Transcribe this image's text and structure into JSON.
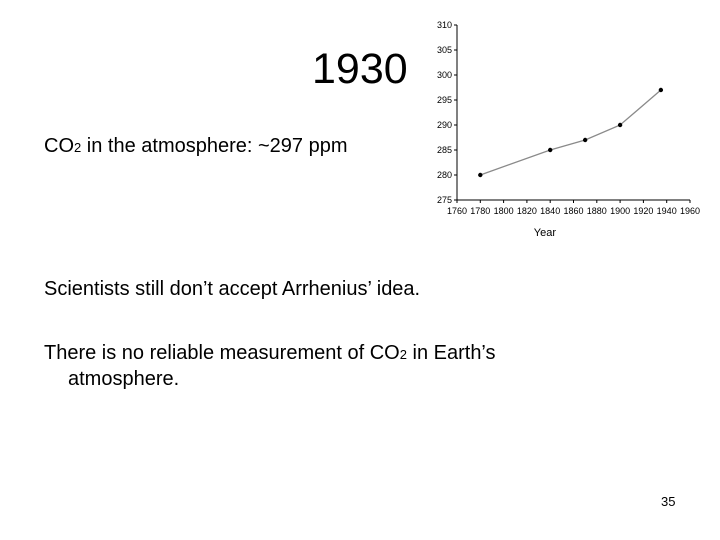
{
  "slide": {
    "title": "1930",
    "co2_prefix": "CO",
    "co2_sub": "2",
    "co2_suffix": " in the atmosphere: ~297 ppm",
    "sentence1": "Scientists still don’t accept Arrhenius’ idea.",
    "sentence2_prefix": "There is no reliable measurement of CO",
    "sentence2_sub": "2",
    "sentence2_suffix": " in Earth’s",
    "sentence2_line2": "atmosphere.",
    "page_number": "35"
  },
  "chart_data": {
    "type": "line",
    "title": "",
    "xlabel": "Year",
    "ylabel": "",
    "xlim": [
      1760,
      1960
    ],
    "ylim": [
      275,
      310
    ],
    "x_ticks": [
      "1760",
      "1780",
      "1800",
      "1820",
      "1840",
      "1860",
      "1880",
      "1900",
      "1920",
      "1940",
      "1960"
    ],
    "y_ticks": [
      "275",
      "280",
      "285",
      "290",
      "295",
      "300",
      "305",
      "310"
    ],
    "series": [
      {
        "x": [
          1780,
          1840,
          1870,
          1900,
          1935
        ],
        "y": [
          280,
          285,
          287,
          290,
          297
        ]
      }
    ],
    "colors": {
      "line": "#8a8a8a",
      "marker": "#000000",
      "axis": "#000000"
    },
    "grid": false
  }
}
